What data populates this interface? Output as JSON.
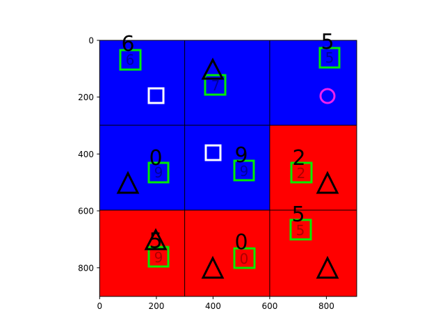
{
  "axes": {
    "x_ticks": [
      "0",
      "200",
      "400",
      "600",
      "800"
    ],
    "y_ticks": [
      "0",
      "200",
      "400",
      "600",
      "800"
    ]
  },
  "grid": {
    "cell_colors": [
      [
        "#0000ff",
        "#0000ff",
        "#0000ff"
      ],
      [
        "#0000ff",
        "#0000ff",
        "#ff0000"
      ],
      [
        "#ff0000",
        "#ff0000",
        "#ff0000"
      ]
    ]
  },
  "colors": {
    "blue": "#0000ff",
    "red": "#ff0000",
    "green": "#00ee00",
    "magenta": "#ee22ee",
    "white": "#ffffff",
    "black": "#000000"
  },
  "labels": {
    "big": [
      "6",
      "5",
      "0",
      "9",
      "2",
      "5",
      "5",
      "0"
    ],
    "small": [
      "6",
      "5",
      "7",
      "9",
      "9",
      "2",
      "5",
      "9",
      "0"
    ]
  }
}
